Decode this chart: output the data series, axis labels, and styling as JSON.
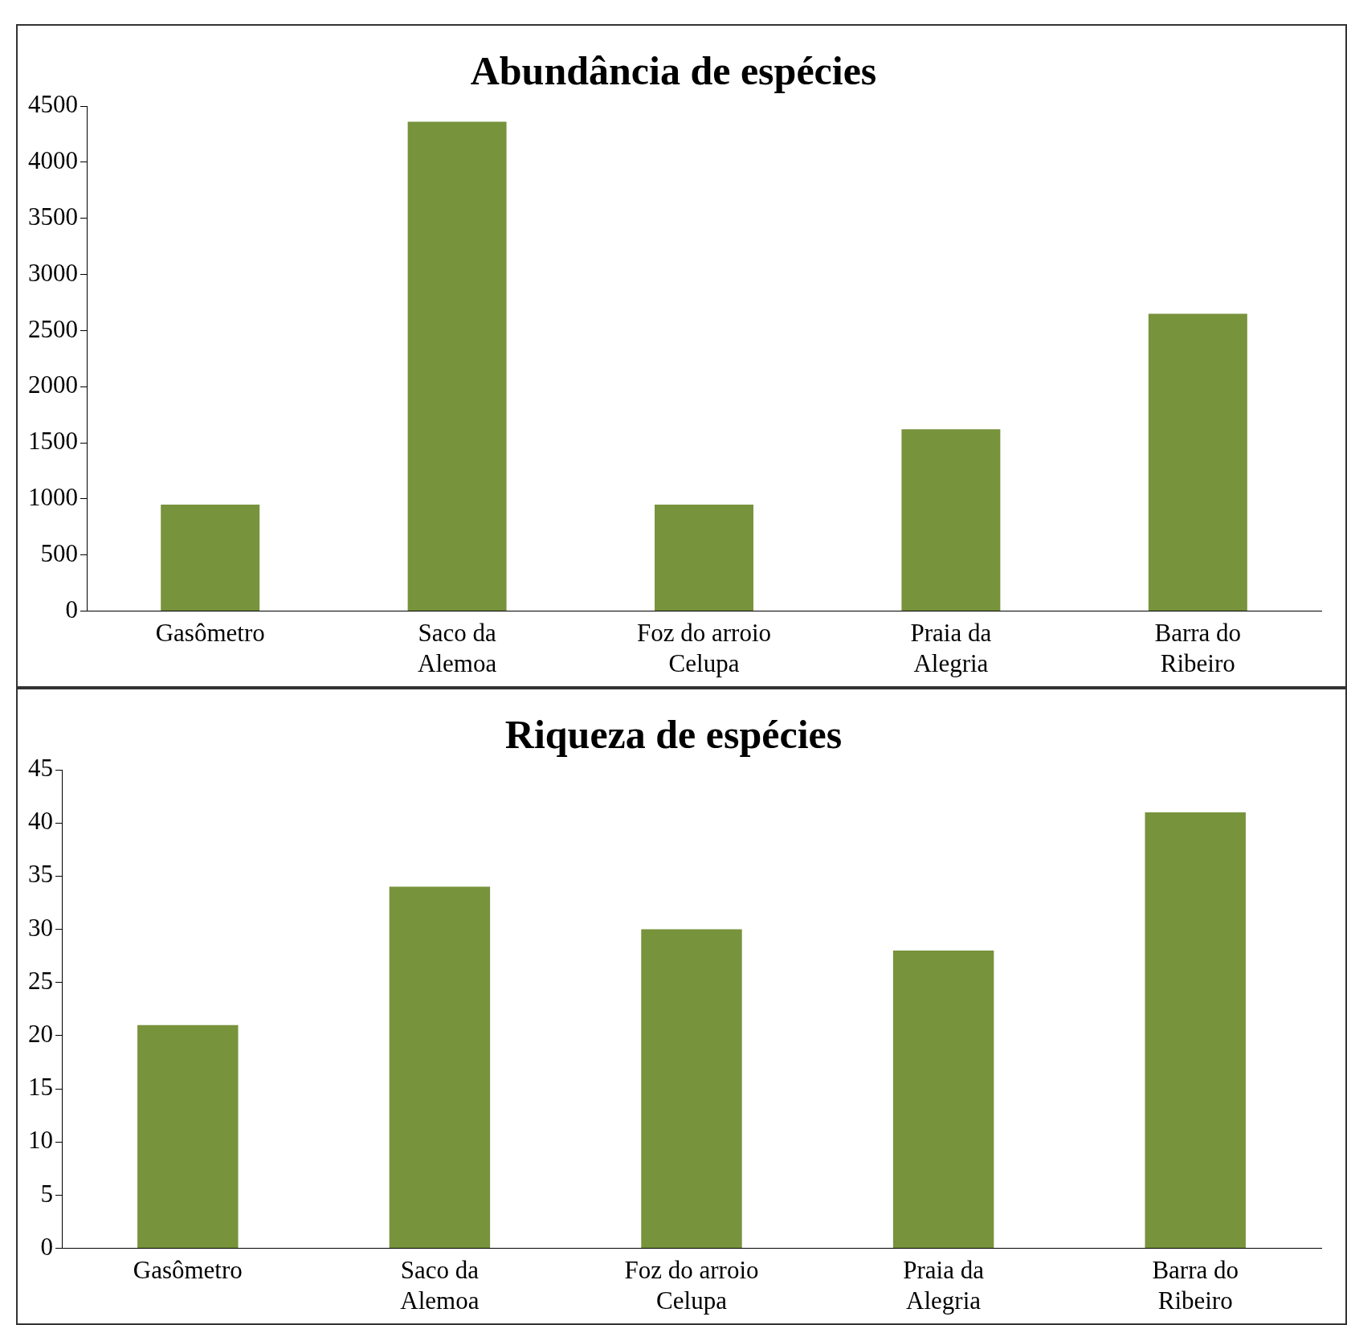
{
  "chart_data": [
    {
      "type": "bar",
      "title": "Abundância de espécies",
      "categories": [
        "Gasômetro",
        "Saco da Alemoa",
        "Foz do arroio Celupa",
        "Praia da Alegria",
        "Barra do Ribeiro"
      ],
      "values": [
        950,
        4360,
        950,
        1620,
        2650
      ],
      "color": "#77933c",
      "ylim": [
        0,
        4500
      ],
      "yticks": [
        0,
        500,
        1000,
        1500,
        2000,
        2500,
        3000,
        3500,
        4000,
        4500
      ],
      "grid": false,
      "legend": false
    },
    {
      "type": "bar",
      "title": "Riqueza de espécies",
      "categories": [
        "Gasômetro",
        "Saco da Alemoa",
        "Foz do arroio Celupa",
        "Praia da Alegria",
        "Barra do Ribeiro"
      ],
      "values": [
        21,
        34,
        30,
        28,
        41
      ],
      "color": "#77933c",
      "ylim": [
        0,
        45
      ],
      "yticks": [
        0,
        5,
        10,
        15,
        20,
        25,
        30,
        35,
        40,
        45
      ],
      "grid": false,
      "legend": false
    }
  ]
}
